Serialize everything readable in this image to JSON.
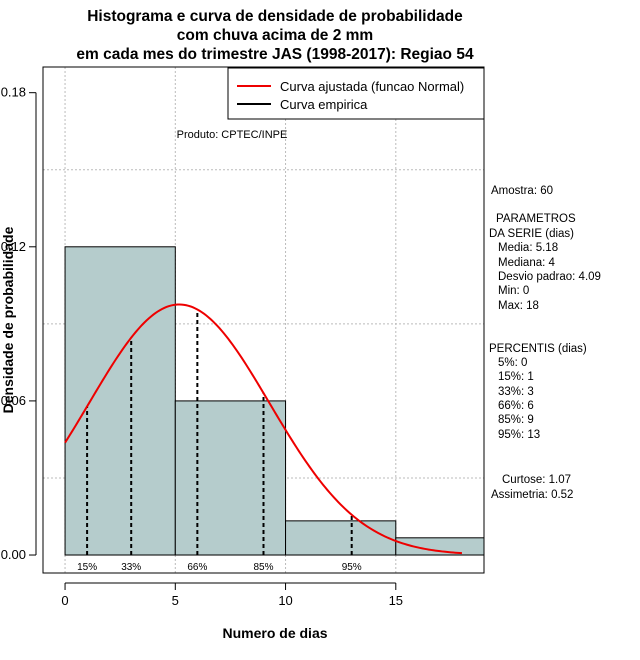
{
  "chart_data": {
    "type": "histogram",
    "title": [
      "Histograma e curva de densidade de probabilidade",
      "com chuva acima de 2 mm",
      "em cada mes do trimestre JAS (1998-2017): Regiao 54"
    ],
    "xlabel": "Numero de dias",
    "ylabel": "Densidade de probabilidade",
    "xlim": [
      -1,
      19
    ],
    "ylim": [
      -0.007,
      0.19
    ],
    "xticks": [
      0,
      5,
      10,
      15
    ],
    "yticks": [
      0.0,
      0.06,
      0.12,
      0.18
    ],
    "ytick_labels": [
      "0.00",
      "0.06",
      "0.12",
      "0.18"
    ],
    "bins": [
      {
        "start": 0,
        "end": 5,
        "density": 0.12
      },
      {
        "start": 5,
        "end": 10,
        "density": 0.06
      },
      {
        "start": 10,
        "end": 15,
        "density": 0.0133
      },
      {
        "start": 15,
        "end": 20,
        "density": 0.0067
      }
    ],
    "normal_fit": {
      "mean": 5.18,
      "sd": 4.09,
      "x_range": [
        0,
        18
      ]
    },
    "percentile_lines": [
      {
        "label": "15%",
        "x": 1
      },
      {
        "label": "33%",
        "x": 3
      },
      {
        "label": "66%",
        "x": 6
      },
      {
        "label": "85%",
        "x": 9
      },
      {
        "label": "95%",
        "x": 13
      }
    ],
    "legend": {
      "position": "top-right",
      "items": [
        {
          "label": "Curva ajustada (funcao Normal)",
          "color": "#ee0000"
        },
        {
          "label": "Curva empirica",
          "color": "#000000"
        }
      ]
    },
    "credit": "Produto: CPTEC/INPE",
    "colors": {
      "bar_fill": "#b5cccc",
      "curve": "#ee0000",
      "grid": "#bbbbbb"
    }
  },
  "side_panel": {
    "sample": "Amostra: 60",
    "params_title": "PARAMETROS",
    "params_subtitle": "DA SERIE (dias)",
    "params": [
      "Media: 5.18",
      "Mediana: 4",
      "Desvio padrao: 4.09",
      "Min: 0",
      "Max: 18"
    ],
    "percentis_title": "PERCENTIS (dias)",
    "percentis": [
      "5%: 0",
      "15%: 1",
      "33%: 3",
      "66%: 6",
      "85%: 9",
      "95%: 13"
    ],
    "kurtosis": "Curtose: 1.07",
    "skewness": "Assimetria: 0.52"
  }
}
